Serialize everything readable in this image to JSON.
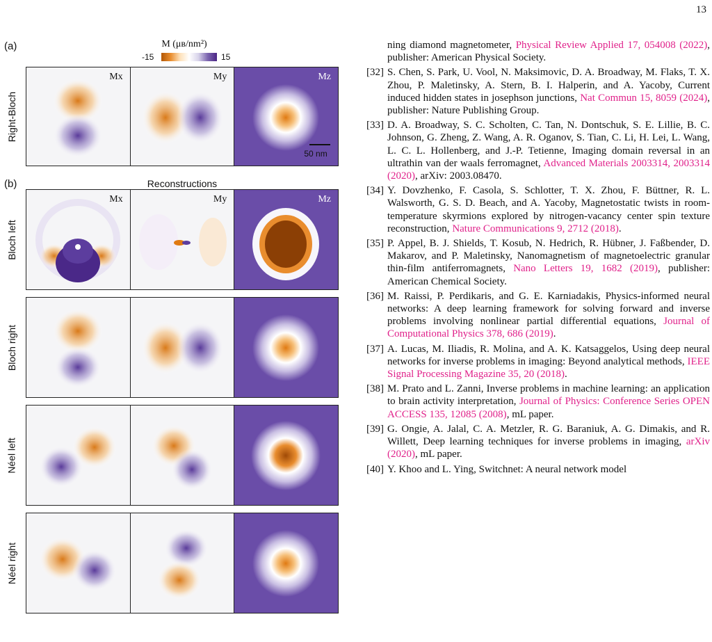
{
  "page_number": "13",
  "figure": {
    "panel_a_label": "(a)",
    "panel_b_label": "(b)",
    "colorbar": {
      "title": "M (μʙ/nm²)",
      "min": "-15",
      "max": "15",
      "negative_color": "#b35806",
      "positive_color": "#4b2585"
    },
    "reconstructions_title": "Reconstructions",
    "row_labels": [
      "Right-Bloch",
      "Bloch left",
      "Bloch right",
      "Néel left",
      "Néel right"
    ],
    "component_labels": [
      "Mx",
      "My",
      "Mz"
    ],
    "scale_bar": "50 nm"
  },
  "references": {
    "continuation": {
      "text": "ning diamond magnetometer, ",
      "link": "Physical Review Applied 17, 054008 (2022)",
      "tail": ", publisher: American Physical Society."
    },
    "items": [
      {
        "num": "[32]",
        "text": "S. Chen, S. Park, U. Vool, N. Maksimovic, D. A. Broadway, M. Flaks, T. X. Zhou, P. Maletinsky, A. Stern, B. I. Halperin, and A. Yacoby, Current induced hidden states in josephson junctions, ",
        "link": "Nat Commun 15, 8059 (2024)",
        "tail": ", publisher: Nature Publishing Group."
      },
      {
        "num": "[33]",
        "text": "D. A. Broadway, S. C. Scholten, C. Tan, N. Dontschuk, S. E. Lillie, B. C. Johnson, G. Zheng, Z. Wang, A. R. Oganov, S. Tian, C. Li, H. Lei, L. Wang, L. C. L. Hollenberg, and J.-P. Tetienne, Imaging domain reversal in an ultrathin van der waals ferromagnet, ",
        "link": "Advanced Materials 2003314, 2003314 (2020)",
        "tail": ", arXiv: 2003.08470."
      },
      {
        "num": "[34]",
        "text": "Y. Dovzhenko, F. Casola, S. Schlotter, T. X. Zhou, F. Büttner, R. L. Walsworth, G. S. D. Beach, and A. Yacoby, Magnetostatic twists in room-temperature skyrmions explored by nitrogen-vacancy center spin texture reconstruction, ",
        "link": "Nature Communications 9, 2712 (2018)",
        "tail": "."
      },
      {
        "num": "[35]",
        "text": "P. Appel, B. J. Shields, T. Kosub, N. Hedrich, R. Hübner, J. Faßbender, D. Makarov, and P. Maletinsky, Nanomagnetism of magnetoelectric granular thin-film antiferromagnets, ",
        "link": "Nano Letters 19, 1682 (2019)",
        "tail": ", publisher: American Chemical Society."
      },
      {
        "num": "[36]",
        "text": "M. Raissi, P. Perdikaris, and G. E. Karniadakis, Physics-informed neural networks: A deep learning framework for solving forward and inverse problems involving nonlinear partial differential equations, ",
        "link": "Journal of Computational Physics 378, 686 (2019)",
        "tail": "."
      },
      {
        "num": "[37]",
        "text": "A. Lucas, M. Iliadis, R. Molina, and A. K. Katsaggelos, Using deep neural networks for inverse problems in imaging: Beyond analytical methods, ",
        "link": "IEEE Signal Processing Magazine 35, 20 (2018)",
        "tail": "."
      },
      {
        "num": "[38]",
        "text": "M. Prato and L. Zanni, Inverse problems in machine learning: an application to brain activity interpretation, ",
        "link": "Journal of Physics: Conference Series OPEN ACCESS 135, 12085 (2008)",
        "tail": ", mL paper."
      },
      {
        "num": "[39]",
        "text": "G. Ongie, A. Jalal, C. A. Metzler, R. G. Baraniuk, A. G. Dimakis, and R. Willett, Deep learning techniques for inverse problems in imaging, ",
        "link": "arXiv (2020)",
        "tail": ", mL paper."
      },
      {
        "num": "[40]",
        "text": "Y. Khoo and L. Ying, Switchnet: A neural network model",
        "link": "",
        "tail": ""
      }
    ]
  }
}
